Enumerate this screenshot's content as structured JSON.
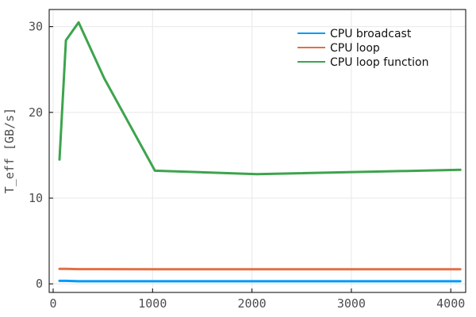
{
  "chart_data": {
    "type": "line",
    "ylabel": "T_eff [GB/s]",
    "xlabel": "",
    "xlim": [
      -40,
      4150
    ],
    "ylim": [
      -1,
      32
    ],
    "x_ticks": [
      0,
      1000,
      2000,
      3000,
      4000
    ],
    "y_ticks": [
      0,
      10,
      20,
      30
    ],
    "grid": true,
    "legend_position": "top-right",
    "series": [
      {
        "name": "CPU broadcast",
        "color": "#009af9",
        "x": [
          64,
          128,
          256,
          512,
          1024,
          2048,
          4096
        ],
        "y": [
          0.35,
          0.35,
          0.3,
          0.3,
          0.3,
          0.3,
          0.3
        ]
      },
      {
        "name": "CPU loop",
        "color": "#e26f46",
        "x": [
          64,
          128,
          256,
          512,
          1024,
          2048,
          4096
        ],
        "y": [
          1.75,
          1.75,
          1.72,
          1.72,
          1.7,
          1.7,
          1.7
        ]
      },
      {
        "name": "CPU loop function",
        "color": "#3da44d",
        "x": [
          64,
          128,
          256,
          512,
          1024,
          2048,
          4096
        ],
        "y": [
          14.5,
          28.4,
          30.5,
          24.0,
          13.2,
          12.8,
          13.3
        ]
      }
    ]
  }
}
